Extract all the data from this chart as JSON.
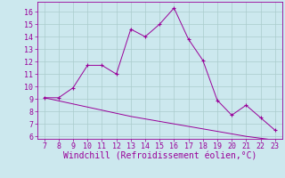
{
  "x": [
    7,
    8,
    9,
    10,
    11,
    12,
    13,
    14,
    15,
    16,
    17,
    18,
    19,
    20,
    21,
    22,
    23
  ],
  "y_curve": [
    9.1,
    9.1,
    9.9,
    11.7,
    11.7,
    11.0,
    14.6,
    14.0,
    15.0,
    16.3,
    13.8,
    12.1,
    8.9,
    7.7,
    8.5,
    7.5,
    6.5
  ],
  "y_line": [
    9.1,
    8.85,
    8.6,
    8.35,
    8.1,
    7.85,
    7.6,
    7.4,
    7.2,
    7.0,
    6.8,
    6.6,
    6.4,
    6.2,
    6.0,
    5.85,
    5.7
  ],
  "line_color": "#990099",
  "bg_color": "#cce8ee",
  "grid_color": "#aacccc",
  "xlabel": "Windchill (Refroidissement éolien,°C)",
  "xlim": [
    6.5,
    23.5
  ],
  "ylim": [
    5.8,
    16.8
  ],
  "xticks": [
    7,
    8,
    9,
    10,
    11,
    12,
    13,
    14,
    15,
    16,
    17,
    18,
    19,
    20,
    21,
    22,
    23
  ],
  "yticks": [
    6,
    7,
    8,
    9,
    10,
    11,
    12,
    13,
    14,
    15,
    16
  ],
  "tick_fontsize": 6,
  "xlabel_fontsize": 7
}
